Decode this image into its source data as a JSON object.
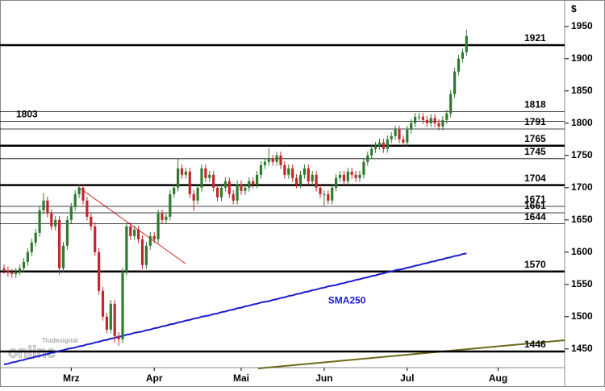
{
  "chart_data": {
    "type": "candlestick",
    "y_label": "$",
    "logo": [
      "Tradesignal",
      "online"
    ],
    "categories": [
      null,
      null,
      null,
      null,
      null,
      null,
      null,
      null,
      null,
      null,
      null,
      null,
      null,
      null,
      null,
      null,
      null,
      "Mrz",
      null,
      null,
      null,
      null,
      null,
      null,
      null,
      null,
      null,
      null,
      null,
      null,
      null,
      null,
      null,
      null,
      null,
      null,
      null,
      null,
      "Apr",
      null,
      null,
      null,
      null,
      null,
      null,
      null,
      null,
      null,
      null,
      null,
      null,
      null,
      null,
      null,
      null,
      null,
      null,
      null,
      null,
      null,
      "Mai",
      null,
      null,
      null,
      null,
      null,
      null,
      null,
      null,
      null,
      null,
      null,
      null,
      null,
      null,
      null,
      null,
      null,
      null,
      null,
      null,
      "Jun",
      null,
      null,
      null,
      null,
      null,
      null,
      null,
      null,
      null,
      null,
      null,
      null,
      null,
      null,
      null,
      null,
      null,
      null,
      null,
      null,
      "Jul",
      null,
      null,
      null,
      null,
      null,
      null,
      null,
      null,
      null,
      null,
      null,
      null,
      null,
      null,
      null,
      null,
      null,
      null,
      null,
      null,
      null,
      null,
      "Aug"
    ],
    "open": [
      1575,
      1572,
      1568,
      1566,
      1570,
      1575,
      1585,
      1600,
      1615,
      1630,
      1665,
      1680,
      1660,
      1640,
      1650,
      1575,
      1610,
      1650,
      1670,
      1690,
      1700,
      1680,
      1655,
      1640,
      1600,
      1540,
      1500,
      1480,
      1520,
      1470,
      1465,
      1570,
      1640,
      1625,
      1635,
      1620,
      1580,
      1610,
      1625,
      1620,
      1660,
      1650,
      1655,
      1690,
      1700,
      1730,
      1720,
      1725,
      1690,
      1680,
      1700,
      1730,
      1715,
      1720,
      1700,
      1685,
      1700,
      1710,
      1690,
      1680,
      1705,
      1695,
      1700,
      1710,
      1705,
      1720,
      1735,
      1740,
      1745,
      1740,
      1750,
      1735,
      1720,
      1730,
      1715,
      1705,
      1720,
      1730,
      1710,
      1720,
      1700,
      1690,
      1690,
      1680,
      1700,
      1715,
      1720,
      1710,
      1725,
      1720,
      1715,
      1720,
      1740,
      1750,
      1760,
      1765,
      1770,
      1760,
      1775,
      1780,
      1790,
      1775,
      1770,
      1790,
      1800,
      1810,
      1810,
      1805,
      1800,
      1808,
      1800,
      1795,
      1805,
      1815,
      1845,
      1880,
      1900,
      1910,
      null,
      null,
      null,
      null,
      null,
      null,
      null,
      null
    ],
    "high": [
      1581,
      1578,
      1574,
      1576,
      1581,
      1591,
      1606,
      1621,
      1636,
      1671,
      1692,
      1686,
      1666,
      1656,
      1656,
      1616,
      1656,
      1676,
      1696,
      1706,
      1706,
      1686,
      1661,
      1646,
      1606,
      1546,
      1506,
      1526,
      1526,
      1476,
      1576,
      1646,
      1646,
      1641,
      1641,
      1626,
      1616,
      1631,
      1631,
      1666,
      1666,
      1661,
      1696,
      1706,
      1746,
      1736,
      1731,
      1731,
      1696,
      1706,
      1736,
      1736,
      1726,
      1726,
      1706,
      1706,
      1716,
      1716,
      1696,
      1711,
      1711,
      1706,
      1716,
      1716,
      1726,
      1741,
      1746,
      1761,
      1751,
      1756,
      1756,
      1741,
      1736,
      1736,
      1721,
      1726,
      1736,
      1736,
      1726,
      1726,
      1706,
      1696,
      1696,
      1706,
      1721,
      1726,
      1726,
      1731,
      1731,
      1726,
      1726,
      1746,
      1756,
      1766,
      1771,
      1776,
      1776,
      1781,
      1786,
      1796,
      1796,
      1781,
      1796,
      1806,
      1816,
      1816,
      1816,
      1811,
      1814,
      1814,
      1806,
      1811,
      1821,
      1851,
      1886,
      1906,
      1916,
      1945,
      null,
      null,
      null,
      null,
      null,
      null,
      null,
      null
    ],
    "low": [
      1566,
      1562,
      1560,
      1560,
      1564,
      1569,
      1579,
      1594,
      1609,
      1624,
      1659,
      1654,
      1634,
      1634,
      1565,
      1569,
      1604,
      1644,
      1664,
      1684,
      1674,
      1649,
      1634,
      1594,
      1534,
      1494,
      1474,
      1474,
      1460,
      1455,
      1459,
      1564,
      1619,
      1619,
      1614,
      1574,
      1574,
      1604,
      1614,
      1614,
      1644,
      1644,
      1649,
      1684,
      1694,
      1714,
      1714,
      1684,
      1664,
      1674,
      1694,
      1709,
      1709,
      1694,
      1679,
      1679,
      1694,
      1684,
      1674,
      1674,
      1689,
      1689,
      1694,
      1699,
      1699,
      1714,
      1729,
      1734,
      1734,
      1734,
      1729,
      1714,
      1714,
      1709,
      1699,
      1699,
      1714,
      1704,
      1704,
      1694,
      1684,
      1672,
      1674,
      1674,
      1694,
      1709,
      1704,
      1704,
      1714,
      1709,
      1709,
      1714,
      1734,
      1744,
      1754,
      1759,
      1754,
      1754,
      1769,
      1774,
      1769,
      1764,
      1764,
      1784,
      1794,
      1804,
      1799,
      1794,
      1794,
      1794,
      1789,
      1789,
      1799,
      1809,
      1839,
      1874,
      1894,
      1904,
      null,
      null,
      null,
      null,
      null,
      null,
      null,
      null
    ],
    "close": [
      1572,
      1568,
      1566,
      1570,
      1575,
      1585,
      1600,
      1615,
      1630,
      1665,
      1680,
      1660,
      1640,
      1650,
      1575,
      1610,
      1650,
      1670,
      1690,
      1700,
      1680,
      1655,
      1640,
      1600,
      1540,
      1500,
      1480,
      1520,
      1470,
      1465,
      1570,
      1640,
      1625,
      1635,
      1620,
      1580,
      1610,
      1625,
      1620,
      1660,
      1650,
      1655,
      1690,
      1700,
      1730,
      1720,
      1725,
      1690,
      1680,
      1700,
      1730,
      1715,
      1720,
      1700,
      1685,
      1700,
      1710,
      1690,
      1680,
      1705,
      1695,
      1700,
      1710,
      1705,
      1720,
      1735,
      1740,
      1745,
      1740,
      1750,
      1735,
      1720,
      1730,
      1715,
      1705,
      1720,
      1730,
      1710,
      1720,
      1700,
      1690,
      1690,
      1680,
      1700,
      1715,
      1720,
      1710,
      1725,
      1720,
      1715,
      1720,
      1740,
      1750,
      1760,
      1765,
      1770,
      1760,
      1775,
      1780,
      1790,
      1775,
      1770,
      1790,
      1800,
      1810,
      1810,
      1805,
      1800,
      1808,
      1800,
      1795,
      1805,
      1815,
      1845,
      1880,
      1900,
      1910,
      1935,
      null,
      null,
      null,
      null,
      null,
      null,
      null,
      null
    ],
    "up_color": "#2f7a2f",
    "down_color": "#c0282d",
    "lines": [
      {
        "name": "SMA250",
        "color": "#1a1acc",
        "values": [
          1426,
          1427,
          1429,
          1430,
          1432,
          1433,
          1435,
          1436,
          1438,
          1439,
          1441,
          1442,
          1444,
          1445,
          1447,
          1448,
          1450,
          1451,
          1452,
          1454,
          1455,
          1457,
          1458,
          1460,
          1461,
          1463,
          1464,
          1466,
          1467,
          1469,
          1470,
          1472,
          1473,
          1475,
          1476,
          1477,
          1479,
          1480,
          1482,
          1483,
          1485,
          1486,
          1488,
          1489,
          1491,
          1492,
          1494,
          1495,
          1497,
          1498,
          1500,
          1501,
          1502,
          1504,
          1505,
          1507,
          1508,
          1510,
          1511,
          1513,
          1514,
          1516,
          1517,
          1519,
          1520,
          1522,
          1523,
          1524,
          1526,
          1527,
          1529,
          1530,
          1532,
          1533,
          1535,
          1536,
          1538,
          1539,
          1541,
          1542,
          1544,
          1545,
          1547,
          1548,
          1549,
          1551,
          1552,
          1554,
          1555,
          1557,
          1558,
          1560,
          1561,
          1563,
          1564,
          1566,
          1567,
          1569,
          1570,
          1572,
          1573,
          1574,
          1576,
          1577,
          1579,
          1580,
          1582,
          1583,
          1585,
          1586,
          1588,
          1589,
          1591,
          1592,
          1594,
          1595,
          1597,
          1598,
          null,
          null,
          null,
          null,
          null,
          null,
          null,
          null
        ]
      }
    ],
    "levels": [
      {
        "value": 1921,
        "style": "thick"
      },
      {
        "value": 1818,
        "style": "thin"
      },
      {
        "value": 1803,
        "style": "thin",
        "side": "left"
      },
      {
        "value": 1791,
        "style": "thin"
      },
      {
        "value": 1765,
        "style": "thick"
      },
      {
        "value": 1745,
        "style": "thin"
      },
      {
        "value": 1704,
        "style": "thick"
      },
      {
        "value": 1671,
        "style": "thin"
      },
      {
        "value": 1661,
        "style": "thin"
      },
      {
        "value": 1644,
        "style": "thin"
      },
      {
        "value": 1570,
        "style": "thick"
      },
      {
        "value": 1446,
        "style": "thick"
      }
    ],
    "ylim": [
      1421,
      1991
    ],
    "yticks": [
      1450,
      1500,
      1550,
      1600,
      1650,
      1700,
      1750,
      1800,
      1850,
      1900,
      1950
    ]
  }
}
